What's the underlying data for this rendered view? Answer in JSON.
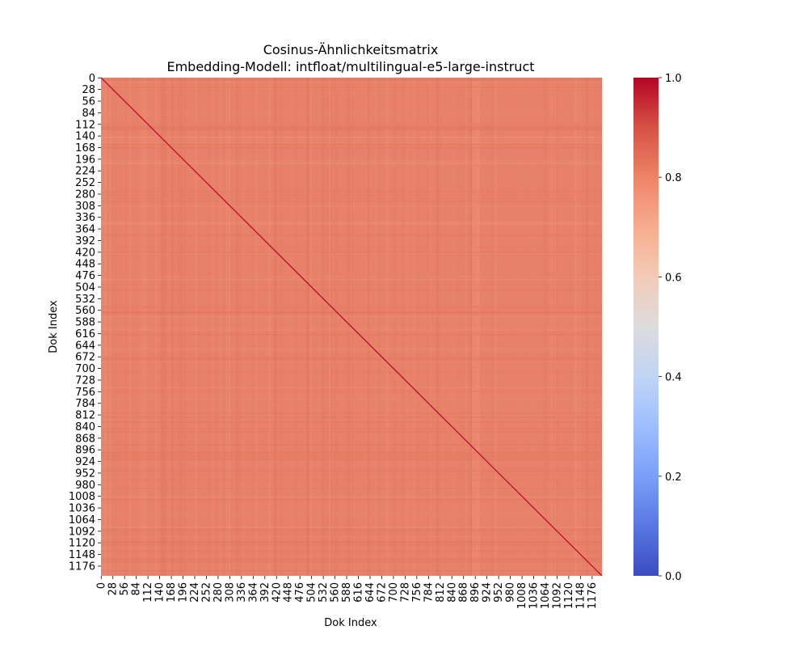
{
  "chart_data": {
    "type": "heatmap",
    "title": "Cosinus-Ähnlichkeitsmatrix",
    "subtitle": "Embedding-Modell: intfloat/multilingual-e5-large-instruct",
    "xlabel": "Dok Index",
    "ylabel": "Dok Index",
    "x_ticks": [
      "0",
      "28",
      "56",
      "84",
      "112",
      "140",
      "168",
      "196",
      "224",
      "252",
      "280",
      "308",
      "336",
      "364",
      "392",
      "420",
      "448",
      "476",
      "504",
      "532",
      "560",
      "588",
      "616",
      "644",
      "672",
      "700",
      "728",
      "756",
      "784",
      "812",
      "840",
      "868",
      "896",
      "924",
      "952",
      "980",
      "1008",
      "1036",
      "1064",
      "1092",
      "1120",
      "1148",
      "1176"
    ],
    "y_ticks": [
      "0",
      "28",
      "56",
      "84",
      "112",
      "140",
      "168",
      "196",
      "224",
      "252",
      "280",
      "308",
      "336",
      "364",
      "392",
      "420",
      "448",
      "476",
      "504",
      "532",
      "560",
      "588",
      "616",
      "644",
      "672",
      "700",
      "728",
      "756",
      "784",
      "812",
      "840",
      "868",
      "896",
      "924",
      "952",
      "980",
      "1008",
      "1036",
      "1064",
      "1092",
      "1120",
      "1148",
      "1176"
    ],
    "matrix_size": 1200,
    "tick_step": 28,
    "off_diagonal_value_typical": 0.84,
    "diagonal_value": 1.0,
    "colorscale": "coolwarm",
    "colorbar": {
      "range": [
        0.0,
        1.0
      ],
      "ticks": [
        "0.0",
        "0.2",
        "0.4",
        "0.6",
        "0.8",
        "1.0"
      ]
    },
    "colors": {
      "low": "#3b4cc0",
      "mid": "#dddcdc",
      "high": "#b40426",
      "background_cell": "#e8816a"
    }
  }
}
